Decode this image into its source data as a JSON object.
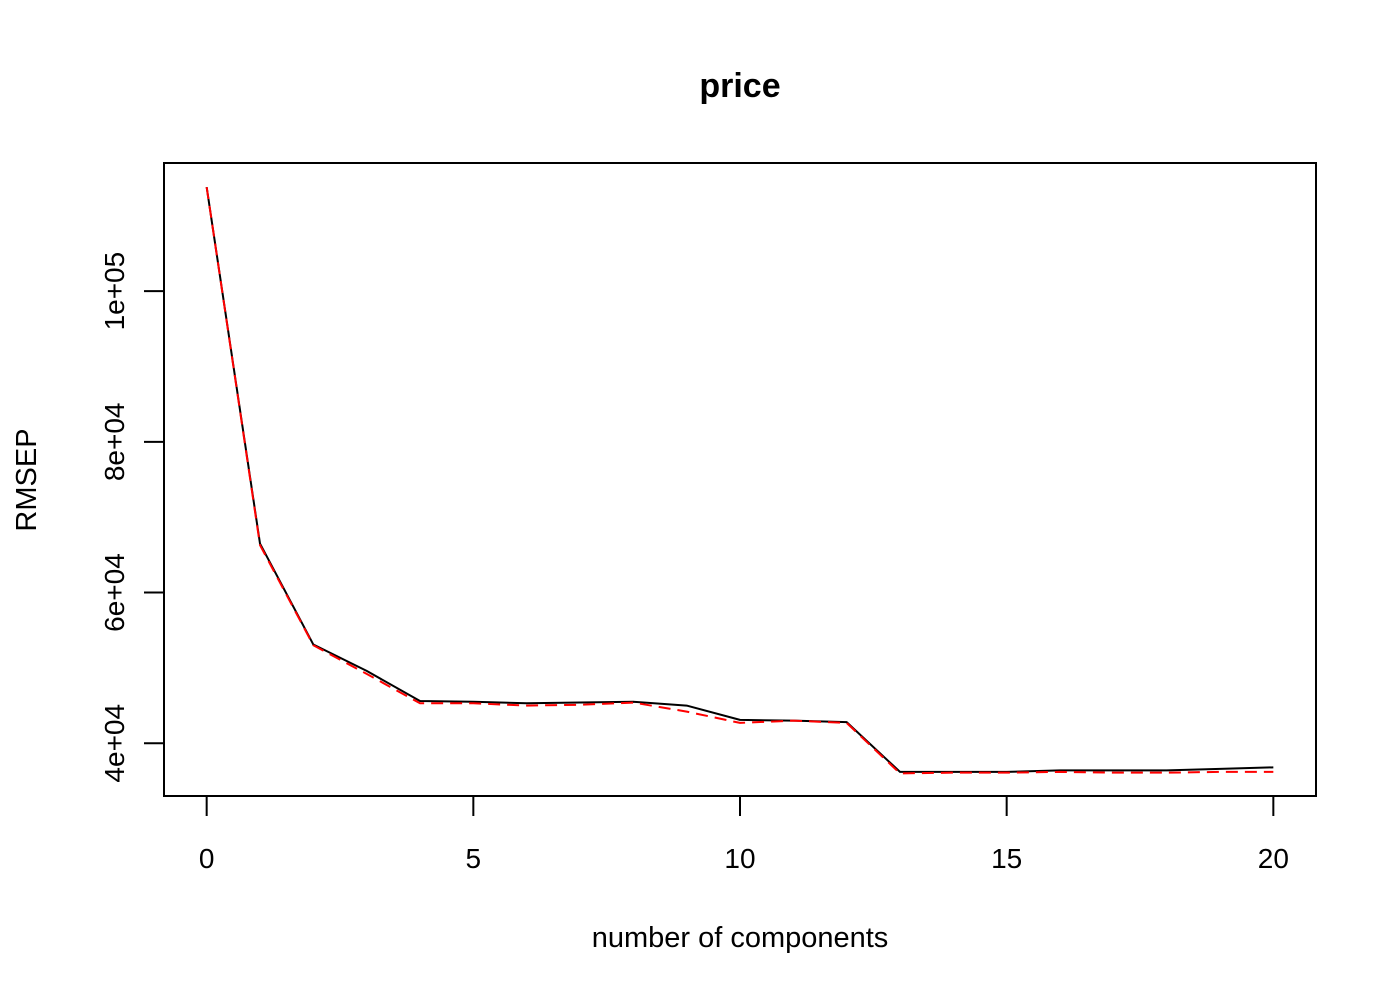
{
  "chart_data": {
    "type": "line",
    "title": "price",
    "xlabel": "number of components",
    "ylabel": "RMSEP",
    "xlim": [
      -0.8,
      20.8
    ],
    "ylim": [
      33000,
      117000
    ],
    "x_ticks": [
      0,
      5,
      10,
      15,
      20
    ],
    "x_tick_labels": [
      "0",
      "5",
      "10",
      "15",
      "20"
    ],
    "y_ticks": [
      40000,
      60000,
      80000,
      100000
    ],
    "y_tick_labels": [
      "4e+04",
      "6e+04",
      "8e+04",
      "1e+05"
    ],
    "grid": false,
    "legend": "none",
    "x": [
      0,
      1,
      2,
      3,
      4,
      5,
      6,
      7,
      8,
      9,
      10,
      11,
      12,
      13,
      14,
      15,
      16,
      17,
      18,
      19,
      20
    ],
    "series": [
      {
        "color": "#000000",
        "dash": "solid",
        "values": [
          113800,
          66500,
          53100,
          49600,
          45600,
          45500,
          45300,
          45400,
          45500,
          45000,
          43100,
          43000,
          42800,
          36200,
          36200,
          36200,
          36400,
          36400,
          36400,
          36600,
          36800
        ]
      },
      {
        "color": "#ff0000",
        "dash": "dashed",
        "values": [
          113800,
          66300,
          53000,
          49200,
          45300,
          45300,
          45000,
          45100,
          45400,
          44200,
          42700,
          43000,
          42700,
          36000,
          36100,
          36100,
          36200,
          36100,
          36100,
          36200,
          36200
        ]
      }
    ]
  }
}
